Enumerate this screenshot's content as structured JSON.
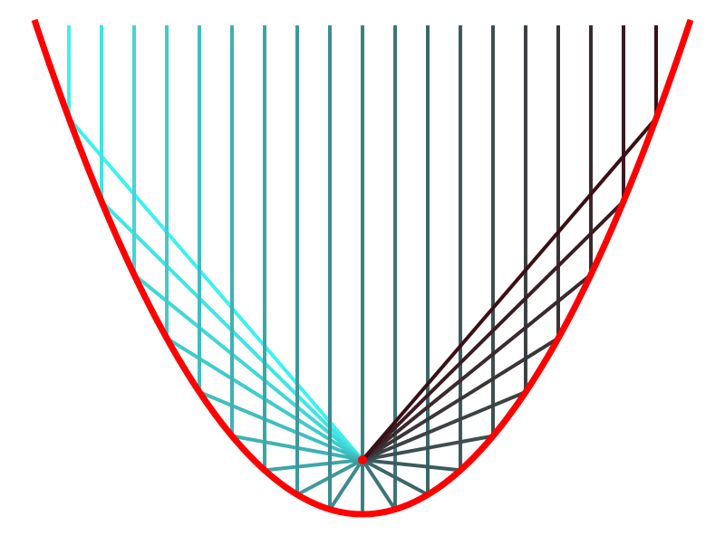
{
  "diagram": {
    "ray_count": 19,
    "colors": {
      "curve": "#ff0000",
      "focus": "#ff0000",
      "ray_start": "#40f0f0",
      "ray_end": "#3a1015",
      "background": "#ffffff"
    }
  }
}
